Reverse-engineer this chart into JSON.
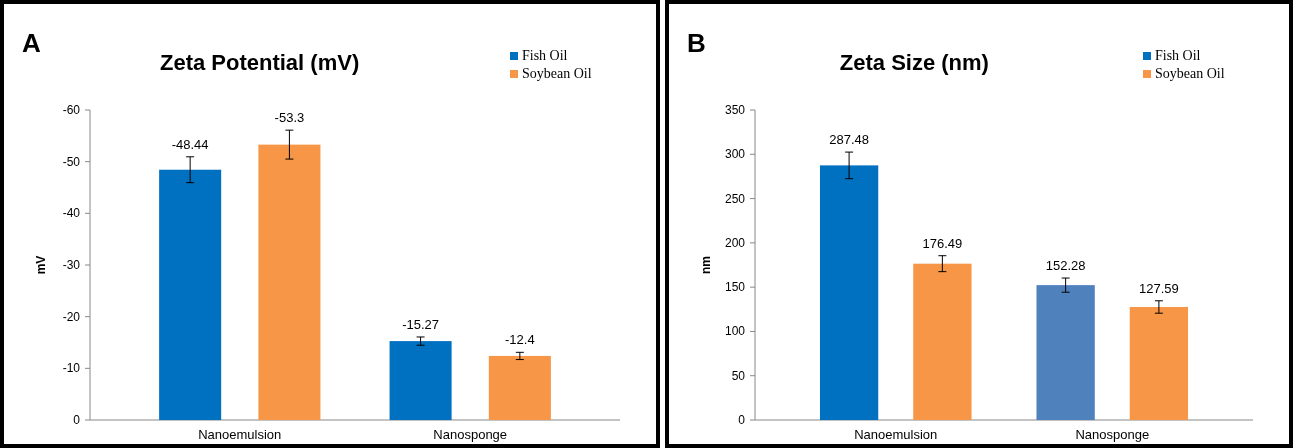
{
  "chart_data": [
    {
      "type": "bar",
      "title": "Zeta Potential (mV)",
      "ylabel": "mV",
      "annotations": [
        "A"
      ],
      "categories": [
        "Nanoemulsion",
        "Nanosponge"
      ],
      "ylim": [
        0,
        -60
      ],
      "yticks": [
        0,
        -10,
        -20,
        -30,
        -40,
        -50,
        -60
      ],
      "legend": "top right",
      "data_labels": true,
      "series": [
        {
          "name": "Fish Oil",
          "color": "#0070c0",
          "values": [
            -48.44,
            -15.27
          ],
          "errors": [
            2.5,
            0.8
          ]
        },
        {
          "name": "Soybean Oil",
          "color": "#f79646",
          "values": [
            -53.3,
            -12.4
          ],
          "errors": [
            2.8,
            0.7
          ]
        }
      ]
    },
    {
      "type": "bar",
      "title": "Zeta Size (nm)",
      "ylabel": "nm",
      "annotations": [
        "B"
      ],
      "categories": [
        "Nanoemulsion",
        "Nanosponge"
      ],
      "ylim": [
        0,
        350
      ],
      "yticks": [
        0,
        50,
        100,
        150,
        200,
        250,
        300,
        350
      ],
      "legend": "top right",
      "data_labels": true,
      "series": [
        {
          "name": "Fish Oil",
          "color": "#0070c0",
          "colors": [
            "#0070c0",
            "#4f81bd"
          ],
          "values": [
            287.48,
            152.28
          ],
          "errors": [
            15,
            8
          ]
        },
        {
          "name": "Soybean Oil",
          "color": "#f79646",
          "values": [
            176.49,
            127.59
          ],
          "errors": [
            9,
            7
          ]
        }
      ]
    }
  ]
}
